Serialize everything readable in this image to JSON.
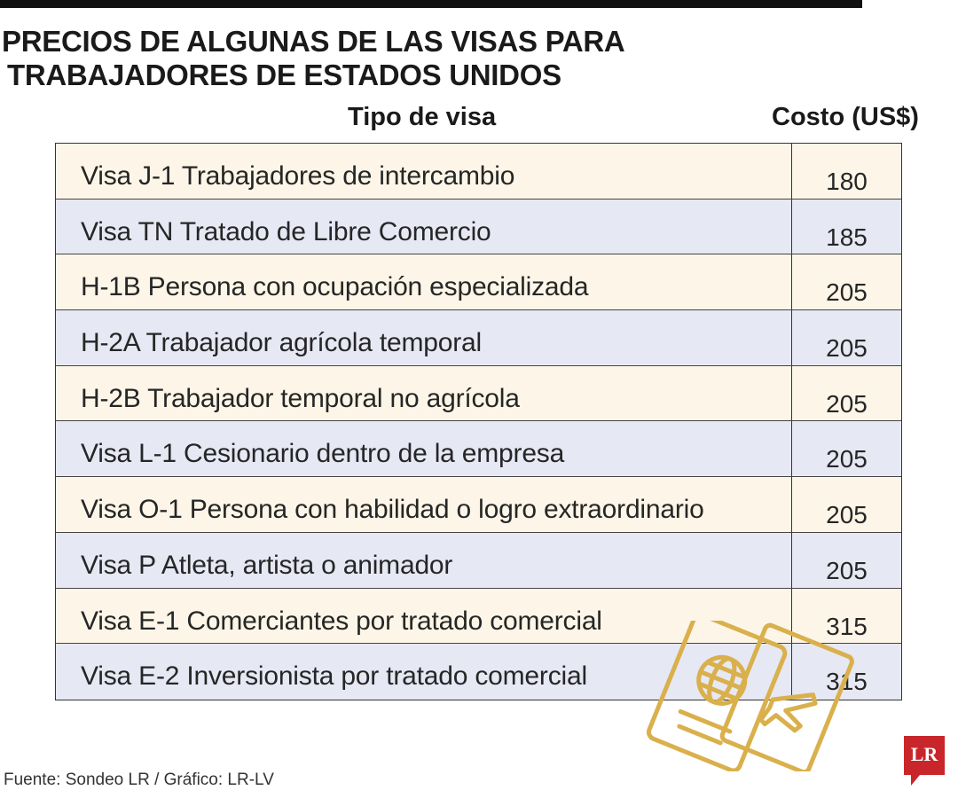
{
  "title_lines": [
    "PRECIOS DE ALGUNAS DE LAS VISAS PARA",
    "TRABAJADORES DE ESTADOS UNIDOS"
  ],
  "columns": {
    "type": "Tipo de visa",
    "cost": "Costo (US$)"
  },
  "colors": {
    "row_odd": "#fdf6e8",
    "row_even": "#e6e8f4",
    "icon_gold": "#d9b04c",
    "logo_red": "#c8262b"
  },
  "rows": [
    {
      "name": "Visa J-1 Trabajadores de intercambio",
      "cost": "180"
    },
    {
      "name": "Visa TN Tratado de Libre Comercio",
      "cost": "185"
    },
    {
      "name": "H-1B Persona con ocupación especializada",
      "cost": "205"
    },
    {
      "name": "H-2A Trabajador agrícola temporal",
      "cost": "205"
    },
    {
      "name": "H-2B Trabajador temporal no agrícola",
      "cost": "205"
    },
    {
      "name": "Visa L-1 Cesionario dentro de la empresa",
      "cost": "205"
    },
    {
      "name": "Visa O-1 Persona con habilidad o logro extraordinario",
      "cost": "205"
    },
    {
      "name": "Visa P Atleta, artista o animador",
      "cost": "205"
    },
    {
      "name": "Visa E-1 Comerciantes por tratado comercial",
      "cost": "315"
    },
    {
      "name": "Visa E-2 Inversionista por tratado comercial",
      "cost": "315"
    }
  ],
  "chart_data": {
    "type": "table",
    "title": "PRECIOS DE ALGUNAS DE LAS VISAS PARA TRABAJADORES DE ESTADOS UNIDOS",
    "columns": [
      "Tipo de visa",
      "Costo (US$)"
    ],
    "categories": [
      "Visa J-1 Trabajadores de intercambio",
      "Visa TN Tratado de Libre Comercio",
      "H-1B Persona con ocupación especializada",
      "H-2A Trabajador agrícola temporal",
      "H-2B Trabajador temporal no agrícola",
      "Visa L-1 Cesionario dentro de la empresa",
      "Visa O-1 Persona con habilidad o logro extraordinario",
      "Visa P Atleta, artista o animador",
      "Visa E-1 Comerciantes por tratado comercial",
      "Visa E-2 Inversionista por tratado comercial"
    ],
    "values": [
      180,
      185,
      205,
      205,
      205,
      205,
      205,
      205,
      315,
      315
    ]
  },
  "source": "Fuente: Sondeo LR  / Gráfico: LR-LV",
  "logo": {
    "text": "LR"
  },
  "icons": {
    "decoration": "passport-icon"
  }
}
